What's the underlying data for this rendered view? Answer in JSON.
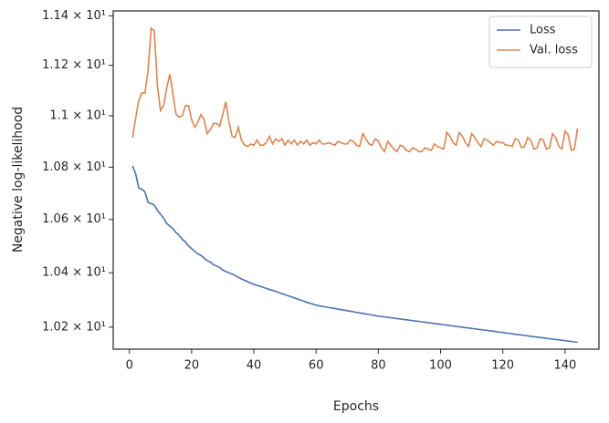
{
  "chart_data": {
    "type": "line",
    "xlabel": "Epochs",
    "ylabel": "Negative log-likelihood",
    "yscale": "log",
    "xlim": [
      -5.2,
      150.9
    ],
    "ylim": [
      10.12,
      11.42
    ],
    "xticks": [
      0,
      20,
      40,
      60,
      80,
      100,
      120,
      140
    ],
    "yticks": [
      {
        "value": 10.2,
        "label": "1.02 × 10¹"
      },
      {
        "value": 10.4,
        "label": "1.04 × 10¹"
      },
      {
        "value": 10.6,
        "label": "1.06 × 10¹"
      },
      {
        "value": 10.8,
        "label": "1.08 × 10¹"
      },
      {
        "value": 11.0,
        "label": "1.1 × 10¹"
      },
      {
        "value": 11.2,
        "label": "1.12 × 10¹"
      },
      {
        "value": 11.4,
        "label": "1.14 × 10¹"
      }
    ],
    "legend": "upper right",
    "x": [
      1,
      2,
      3,
      4,
      5,
      6,
      7,
      8,
      9,
      10,
      11,
      12,
      13,
      14,
      15,
      16,
      17,
      18,
      19,
      20,
      21,
      22,
      23,
      24,
      25,
      26,
      27,
      28,
      29,
      30,
      31,
      32,
      33,
      34,
      35,
      36,
      37,
      38,
      39,
      40,
      41,
      42,
      43,
      44,
      45,
      46,
      47,
      48,
      49,
      50,
      51,
      52,
      53,
      54,
      55,
      56,
      57,
      58,
      59,
      60,
      61,
      62,
      63,
      64,
      65,
      66,
      67,
      68,
      69,
      70,
      71,
      72,
      73,
      74,
      75,
      76,
      77,
      78,
      79,
      80,
      81,
      82,
      83,
      84,
      85,
      86,
      87,
      88,
      89,
      90,
      91,
      92,
      93,
      94,
      95,
      96,
      97,
      98,
      99,
      100,
      101,
      102,
      103,
      104,
      105,
      106,
      107,
      108,
      109,
      110,
      111,
      112,
      113,
      114,
      115,
      116,
      117,
      118,
      119,
      120,
      121,
      122,
      123,
      124,
      125,
      126,
      127,
      128,
      129,
      130,
      131,
      132,
      133,
      134,
      135,
      136,
      137,
      138,
      139,
      140,
      141,
      142,
      143,
      144
    ],
    "series": [
      {
        "name": "Loss",
        "color": "#4c72b0",
        "values": [
          10.805,
          10.775,
          10.72,
          10.715,
          10.705,
          10.665,
          10.66,
          10.655,
          10.635,
          10.62,
          10.605,
          10.585,
          10.575,
          10.565,
          10.55,
          10.54,
          10.525,
          10.515,
          10.5,
          10.49,
          10.48,
          10.47,
          10.465,
          10.455,
          10.445,
          10.44,
          10.43,
          10.425,
          10.42,
          10.41,
          10.405,
          10.4,
          10.395,
          10.39,
          10.383,
          10.377,
          10.372,
          10.367,
          10.362,
          10.357,
          10.353,
          10.35,
          10.346,
          10.342,
          10.338,
          10.335,
          10.331,
          10.327,
          10.323,
          10.319,
          10.315,
          10.311,
          10.307,
          10.303,
          10.299,
          10.295,
          10.291,
          10.288,
          10.284,
          10.28,
          10.278,
          10.276,
          10.274,
          10.272,
          10.27,
          10.268,
          10.266,
          10.264,
          10.262,
          10.26,
          10.258,
          10.256,
          10.254,
          10.252,
          10.25,
          10.248,
          10.246,
          10.244,
          10.242,
          10.24,
          10.239,
          10.237,
          10.236,
          10.234,
          10.233,
          10.231,
          10.23,
          10.228,
          10.227,
          10.225,
          10.224,
          10.222,
          10.221,
          10.219,
          10.218,
          10.216,
          10.215,
          10.213,
          10.212,
          10.21,
          10.209,
          10.207,
          10.206,
          10.204,
          10.203,
          10.201,
          10.2,
          10.198,
          10.197,
          10.195,
          10.194,
          10.192,
          10.191,
          10.189,
          10.188,
          10.186,
          10.185,
          10.183,
          10.182,
          10.18,
          10.179,
          10.177,
          10.176,
          10.174,
          10.173,
          10.171,
          10.17,
          10.168,
          10.167,
          10.165,
          10.164,
          10.162,
          10.161,
          10.159,
          10.158,
          10.156,
          10.155,
          10.154,
          10.152,
          10.151,
          10.149,
          10.148,
          10.146,
          10.145
        ]
      },
      {
        "name": "Val. loss",
        "color": "#dd8452",
        "values": [
          10.915,
          10.99,
          11.06,
          11.09,
          11.09,
          11.18,
          11.35,
          11.34,
          11.12,
          11.02,
          11.04,
          11.11,
          11.165,
          11.085,
          11.005,
          10.995,
          11.0,
          11.04,
          11.04,
          10.985,
          10.955,
          10.975,
          11.005,
          10.985,
          10.93,
          10.945,
          10.97,
          10.97,
          10.96,
          11.005,
          11.055,
          10.975,
          10.92,
          10.915,
          10.955,
          10.905,
          10.885,
          10.88,
          10.89,
          10.885,
          10.905,
          10.885,
          10.885,
          10.895,
          10.92,
          10.89,
          10.91,
          10.9,
          10.91,
          10.885,
          10.905,
          10.89,
          10.905,
          10.885,
          10.9,
          10.89,
          10.905,
          10.885,
          10.895,
          10.89,
          10.905,
          10.89,
          10.89,
          10.895,
          10.89,
          10.885,
          10.9,
          10.895,
          10.89,
          10.89,
          10.905,
          10.9,
          10.885,
          10.88,
          10.93,
          10.91,
          10.89,
          10.885,
          10.91,
          10.9,
          10.875,
          10.86,
          10.9,
          10.885,
          10.87,
          10.86,
          10.885,
          10.88,
          10.865,
          10.86,
          10.875,
          10.87,
          10.86,
          10.86,
          10.875,
          10.87,
          10.865,
          10.89,
          10.88,
          10.875,
          10.87,
          10.935,
          10.92,
          10.895,
          10.885,
          10.935,
          10.92,
          10.895,
          10.88,
          10.93,
          10.915,
          10.895,
          10.88,
          10.91,
          10.905,
          10.895,
          10.885,
          10.9,
          10.895,
          10.895,
          10.885,
          10.885,
          10.88,
          10.91,
          10.905,
          10.875,
          10.88,
          10.915,
          10.905,
          10.87,
          10.875,
          10.91,
          10.905,
          10.87,
          10.875,
          10.93,
          10.915,
          10.88,
          10.87,
          10.94,
          10.925,
          10.865,
          10.87,
          10.95
        ]
      }
    ]
  }
}
